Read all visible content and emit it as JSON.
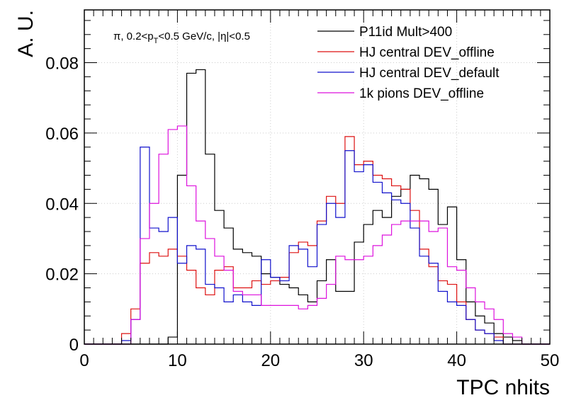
{
  "chart_data": {
    "type": "line",
    "style": "step-histogram",
    "xlabel": "TPC nhits",
    "ylabel": "A. U.",
    "annotation": {
      "pre": "π, 0.2<p",
      "sub": "T",
      "post": "<0.5 GeV/c, |η|<0.5"
    },
    "xlim": [
      0,
      50
    ],
    "ylim": [
      0,
      0.095
    ],
    "x_ticks": [
      0,
      10,
      20,
      30,
      40,
      50
    ],
    "x_tick_labels": [
      "0",
      "10",
      "20",
      "30",
      "40",
      "50"
    ],
    "y_ticks": [
      0,
      0.02,
      0.04,
      0.06,
      0.08
    ],
    "y_tick_labels": [
      "0",
      "0.02",
      "0.04",
      "0.06",
      "0.08"
    ],
    "grid": true,
    "legend_position": "top-right",
    "bin_edges_start": 0,
    "bin_width": 1,
    "series": [
      {
        "name": "P11id Mult>400",
        "color": "#000000",
        "values": [
          0,
          0,
          0,
          0,
          0,
          0,
          0,
          0,
          0,
          0.002,
          0.048,
          0.077,
          0.078,
          0.054,
          0.038,
          0.033,
          0.027,
          0.026,
          0.025,
          0.02,
          0.019,
          0.017,
          0.016,
          0.014,
          0.012,
          0.018,
          0.024,
          0.015,
          0.015,
          0.029,
          0.034,
          0.038,
          0.036,
          0.042,
          0.044,
          0.048,
          0.047,
          0.044,
          0.034,
          0.039,
          0.024,
          0.012,
          0.008,
          0.006,
          0.003,
          0.002,
          0.001,
          0,
          0,
          0
        ]
      },
      {
        "name": "HJ central DEV_offline",
        "color": "#dd1111",
        "values": [
          0,
          0,
          0,
          0,
          0.003,
          0.01,
          0.023,
          0.026,
          0.025,
          0.027,
          0.025,
          0.021,
          0.016,
          0.014,
          0.021,
          0.022,
          0.016,
          0.016,
          0.018,
          0.017,
          0.018,
          0.019,
          0.026,
          0.029,
          0.028,
          0.035,
          0.042,
          0.04,
          0.059,
          0.051,
          0.052,
          0.048,
          0.047,
          0.045,
          0.044,
          0.038,
          0.027,
          0.022,
          0.018,
          0.017,
          0.012,
          0.007,
          0.004,
          0.003,
          0.002,
          0,
          0,
          0,
          0,
          0
        ]
      },
      {
        "name": "HJ central DEV_default",
        "color": "#1111cc",
        "values": [
          0,
          0,
          0,
          0,
          0.001,
          0.007,
          0.056,
          0.033,
          0.032,
          0.036,
          0.023,
          0.028,
          0.027,
          0.017,
          0.016,
          0.012,
          0.014,
          0.012,
          0.011,
          0.024,
          0.019,
          0.018,
          0.028,
          0.027,
          0.022,
          0.034,
          0.04,
          0.036,
          0.055,
          0.049,
          0.051,
          0.046,
          0.043,
          0.041,
          0.04,
          0.033,
          0.025,
          0.023,
          0.015,
          0.012,
          0.011,
          0.007,
          0.004,
          0.003,
          0.001,
          0,
          0,
          0,
          0,
          0
        ]
      },
      {
        "name": "1k pions DEV_offline",
        "color": "#dd11dd",
        "values": [
          0,
          0,
          0,
          0,
          0,
          0.007,
          0.03,
          0.04,
          0.054,
          0.061,
          0.062,
          0.045,
          0.035,
          0.03,
          0.025,
          0.021,
          0.015,
          0.014,
          0.014,
          0.011,
          0.011,
          0.011,
          0.011,
          0.01,
          0.011,
          0.013,
          0.017,
          0.025,
          0.024,
          0.024,
          0.025,
          0.028,
          0.031,
          0.034,
          0.035,
          0.035,
          0.035,
          0.032,
          0.033,
          0.022,
          0.021,
          0.016,
          0.012,
          0.01,
          0.007,
          0.003,
          0.002,
          0,
          0,
          0
        ]
      }
    ]
  }
}
